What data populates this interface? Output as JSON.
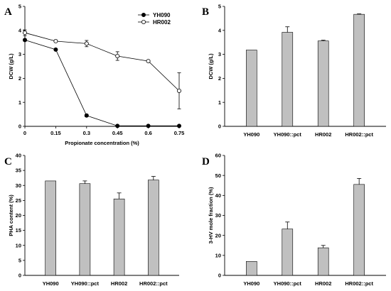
{
  "chart_data": [
    {
      "panel": "A",
      "type": "line",
      "xlabel": "Propionate concentration (%)",
      "ylabel": "DCW (g/L)",
      "x": [
        0,
        0.15,
        0.3,
        0.45,
        0.6,
        0.75
      ],
      "x_tick_labels": [
        "0",
        "0.15",
        "0.3",
        "0.45",
        "0.6",
        "0.75"
      ],
      "xlim": [
        0,
        0.75
      ],
      "ylim": [
        0,
        5
      ],
      "y_ticks": [
        0,
        1,
        2,
        3,
        4,
        5
      ],
      "legend_position": "top-right",
      "series": [
        {
          "name": "YH090",
          "marker": "filled-circle",
          "values": [
            3.6,
            3.2,
            0.45,
            0.02,
            0.02,
            0.02
          ],
          "errors": [
            0.05,
            0.03,
            0.05,
            0,
            0,
            0
          ]
        },
        {
          "name": "HR002",
          "marker": "open-circle",
          "values": [
            3.9,
            3.55,
            3.45,
            2.93,
            2.72,
            1.48
          ],
          "errors": [
            0.12,
            0.04,
            0.13,
            0.18,
            0.03,
            0.75
          ]
        }
      ]
    },
    {
      "panel": "B",
      "type": "bar",
      "categories": [
        "YH090",
        "YH090::pct",
        "HR002",
        "HR002::pct"
      ],
      "values": [
        3.18,
        3.92,
        3.56,
        4.67
      ],
      "errors": [
        0,
        0.23,
        0.03,
        0.02
      ],
      "ylabel": "DCW (g/L)",
      "ylim": [
        0,
        5
      ],
      "y_ticks": [
        0,
        1,
        2,
        3,
        4,
        5
      ]
    },
    {
      "panel": "C",
      "type": "bar",
      "categories": [
        "YH090",
        "YH090::pct",
        "HR002",
        "HR002::pct"
      ],
      "values": [
        31.5,
        30.6,
        25.5,
        31.8
      ],
      "errors": [
        0,
        0.9,
        2.0,
        1.2
      ],
      "ylabel": "PHA content (%)",
      "ylim": [
        0,
        40
      ],
      "y_ticks": [
        0,
        5,
        10,
        15,
        20,
        25,
        30,
        35,
        40
      ]
    },
    {
      "panel": "D",
      "type": "bar",
      "categories": [
        "YH090",
        "YH090::pct",
        "HR002",
        "HR002::pct"
      ],
      "values": [
        7,
        23.2,
        13.8,
        45.5
      ],
      "errors": [
        0,
        3.5,
        1.2,
        3.0
      ],
      "ylabel": "3-HV mole fraction (%)",
      "ylim": [
        0,
        60
      ],
      "y_ticks": [
        0,
        10,
        20,
        30,
        40,
        50,
        60
      ]
    }
  ]
}
